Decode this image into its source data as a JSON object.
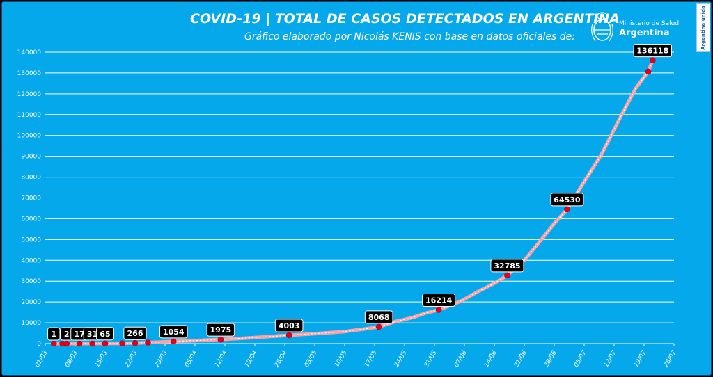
{
  "header": {
    "title": "COVID-19  |  TOTAL DE CASOS DETECTADOS EN ARGENTINA",
    "subtitle": "Gráfico elaborado por Nicolás KENIS con base en datos oficiales de:"
  },
  "logo": {
    "line1": "Ministerio de Salud",
    "line2": "Argentina",
    "emblem": "coat-of-arms-icon"
  },
  "badge": {
    "text": "Argentina unida"
  },
  "colors": {
    "background": "#06a8ec",
    "gridline": "#ffffff",
    "line": "#f4a3a6",
    "marker": "#e3001b",
    "label_bg": "#000000"
  },
  "chart_data": {
    "type": "line",
    "title": "COVID-19  |  TOTAL DE CASOS DETECTADOS EN ARGENTINA",
    "xlabel": "",
    "ylabel": "",
    "x_domain": [
      "2020-03-01",
      "2020-07-26"
    ],
    "ylim": [
      0,
      140000
    ],
    "grid": true,
    "legend": "none",
    "y_ticks": [
      0,
      10000,
      20000,
      30000,
      40000,
      50000,
      60000,
      70000,
      80000,
      90000,
      100000,
      110000,
      120000,
      130000,
      140000
    ],
    "x_ticks": [
      {
        "date": "2020-03-01",
        "label": "01/03"
      },
      {
        "date": "2020-03-08",
        "label": "08/03"
      },
      {
        "date": "2020-03-15",
        "label": "15/03"
      },
      {
        "date": "2020-03-22",
        "label": "22/03"
      },
      {
        "date": "2020-03-29",
        "label": "29/03"
      },
      {
        "date": "2020-04-05",
        "label": "05/04"
      },
      {
        "date": "2020-04-12",
        "label": "12/04"
      },
      {
        "date": "2020-04-19",
        "label": "19/04"
      },
      {
        "date": "2020-04-26",
        "label": "26/04"
      },
      {
        "date": "2020-05-03",
        "label": "03/05"
      },
      {
        "date": "2020-05-10",
        "label": "10/05"
      },
      {
        "date": "2020-05-17",
        "label": "17/05"
      },
      {
        "date": "2020-05-24",
        "label": "24/05"
      },
      {
        "date": "2020-05-31",
        "label": "31/05"
      },
      {
        "date": "2020-06-07",
        "label": "07/06"
      },
      {
        "date": "2020-06-14",
        "label": "14/06"
      },
      {
        "date": "2020-06-21",
        "label": "21/06"
      },
      {
        "date": "2020-06-28",
        "label": "28/06"
      },
      {
        "date": "2020-07-05",
        "label": "05/07"
      },
      {
        "date": "2020-07-12",
        "label": "12/07"
      },
      {
        "date": "2020-07-19",
        "label": "19/07"
      },
      {
        "date": "2020-07-26",
        "label": "26/07"
      }
    ],
    "series": [
      {
        "name": "",
        "points": [
          [
            "2020-03-03",
            1
          ],
          [
            "2020-03-05",
            2
          ],
          [
            "2020-03-06",
            2
          ],
          [
            "2020-03-08",
            12
          ],
          [
            "2020-03-09",
            17
          ],
          [
            "2020-03-11",
            21
          ],
          [
            "2020-03-12",
            31
          ],
          [
            "2020-03-14",
            45
          ],
          [
            "2020-03-15",
            65
          ],
          [
            "2020-03-18",
            97
          ],
          [
            "2020-03-21",
            225
          ],
          [
            "2020-03-22",
            266
          ],
          [
            "2020-03-25",
            502
          ],
          [
            "2020-03-28",
            745
          ],
          [
            "2020-03-31",
            1054
          ],
          [
            "2020-04-05",
            1450
          ],
          [
            "2020-04-10",
            1894
          ],
          [
            "2020-04-11",
            1975
          ],
          [
            "2020-04-15",
            2443
          ],
          [
            "2020-04-20",
            3031
          ],
          [
            "2020-04-27",
            4003
          ],
          [
            "2020-05-03",
            4770
          ],
          [
            "2020-05-10",
            5780
          ],
          [
            "2020-05-15",
            7130
          ],
          [
            "2020-05-18",
            8068
          ],
          [
            "2020-05-22",
            10650
          ],
          [
            "2020-05-26",
            12600
          ],
          [
            "2020-05-29",
            14700
          ],
          [
            "2020-06-01",
            16214
          ],
          [
            "2020-06-06",
            20200
          ],
          [
            "2020-06-10",
            24800
          ],
          [
            "2020-06-14",
            29000
          ],
          [
            "2020-06-17",
            32785
          ],
          [
            "2020-06-21",
            40000
          ],
          [
            "2020-06-25",
            50000
          ],
          [
            "2020-06-28",
            57700
          ],
          [
            "2020-07-01",
            64530
          ],
          [
            "2020-07-05",
            77800
          ],
          [
            "2020-07-09",
            90700
          ],
          [
            "2020-07-13",
            106900
          ],
          [
            "2020-07-17",
            122500
          ],
          [
            "2020-07-20",
            130700
          ],
          [
            "2020-07-21",
            136118
          ]
        ]
      }
    ],
    "markers": [
      [
        "2020-03-03",
        1
      ],
      [
        "2020-03-05",
        2
      ],
      [
        "2020-03-06",
        2
      ],
      [
        "2020-03-09",
        17
      ],
      [
        "2020-03-12",
        31
      ],
      [
        "2020-03-15",
        65
      ],
      [
        "2020-03-19",
        128
      ],
      [
        "2020-03-22",
        266
      ],
      [
        "2020-03-25",
        502
      ],
      [
        "2020-03-31",
        1054
      ],
      [
        "2020-04-11",
        1975
      ],
      [
        "2020-04-27",
        4003
      ],
      [
        "2020-05-18",
        8068
      ],
      [
        "2020-06-01",
        16214
      ],
      [
        "2020-06-17",
        32785
      ],
      [
        "2020-07-01",
        64530
      ],
      [
        "2020-07-20",
        130700
      ],
      [
        "2020-07-21",
        136118
      ]
    ],
    "data_labels": [
      {
        "date": "2020-03-03",
        "value": 1,
        "text": "1"
      },
      {
        "date": "2020-03-06",
        "value": 2,
        "text": "2"
      },
      {
        "date": "2020-03-09",
        "value": 17,
        "text": "17"
      },
      {
        "date": "2020-03-12",
        "value": 31,
        "text": "31"
      },
      {
        "date": "2020-03-15",
        "value": 65,
        "text": "65"
      },
      {
        "date": "2020-03-22",
        "value": 266,
        "text": "266"
      },
      {
        "date": "2020-03-31",
        "value": 1054,
        "text": "1054"
      },
      {
        "date": "2020-04-11",
        "value": 1975,
        "text": "1975"
      },
      {
        "date": "2020-04-27",
        "value": 4003,
        "text": "4003"
      },
      {
        "date": "2020-05-18",
        "value": 8068,
        "text": "8068"
      },
      {
        "date": "2020-06-01",
        "value": 16214,
        "text": "16214"
      },
      {
        "date": "2020-06-17",
        "value": 32785,
        "text": "32785"
      },
      {
        "date": "2020-07-01",
        "value": 64530,
        "text": "64530"
      },
      {
        "date": "2020-07-21",
        "value": 136118,
        "text": "136118"
      }
    ]
  }
}
